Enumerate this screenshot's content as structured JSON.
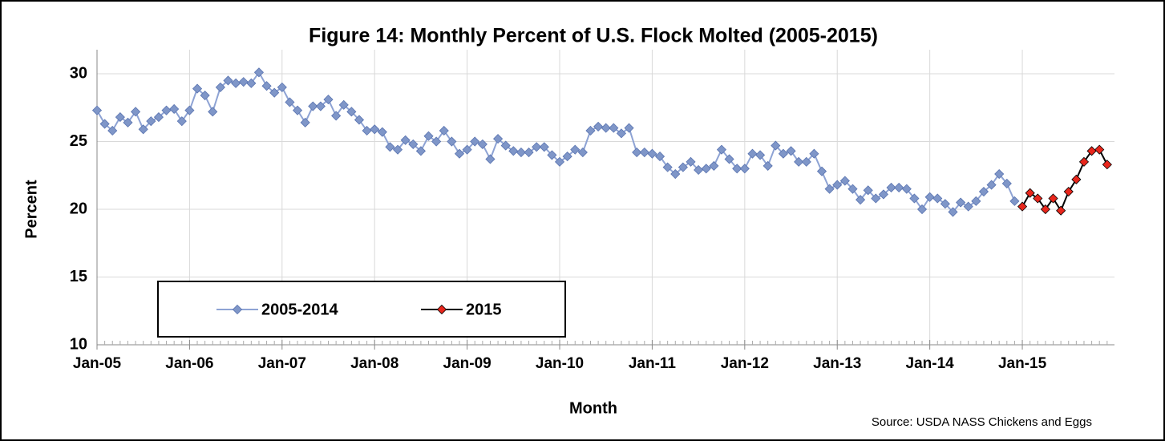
{
  "chart_data": {
    "type": "line",
    "title": "Figure 14: Monthly Percent of U.S. Flock Molted (2005-2015)",
    "x_label": "Month",
    "y_label": "Percent",
    "source": "Source: USDA NASS Chickens and Eggs",
    "categories": [
      "Jan-05",
      null,
      null,
      null,
      null,
      null,
      null,
      null,
      null,
      null,
      null,
      null,
      "Jan-06",
      null,
      null,
      null,
      null,
      null,
      null,
      null,
      null,
      null,
      null,
      null,
      "Jan-07",
      null,
      null,
      null,
      null,
      null,
      null,
      null,
      null,
      null,
      null,
      null,
      "Jan-08",
      null,
      null,
      null,
      null,
      null,
      null,
      null,
      null,
      null,
      null,
      null,
      "Jan-09",
      null,
      null,
      null,
      null,
      null,
      null,
      null,
      null,
      null,
      null,
      null,
      "Jan-10",
      null,
      null,
      null,
      null,
      null,
      null,
      null,
      null,
      null,
      null,
      null,
      "Jan-11",
      null,
      null,
      null,
      null,
      null,
      null,
      null,
      null,
      null,
      null,
      null,
      "Jan-12",
      null,
      null,
      null,
      null,
      null,
      null,
      null,
      null,
      null,
      null,
      null,
      "Jan-13",
      null,
      null,
      null,
      null,
      null,
      null,
      null,
      null,
      null,
      null,
      null,
      "Jan-14",
      null,
      null,
      null,
      null,
      null,
      null,
      null,
      null,
      null,
      null,
      null,
      "Jan-15",
      null,
      null,
      null,
      null,
      null,
      null,
      null,
      null,
      null,
      null,
      null
    ],
    "series": [
      {
        "name": "2005-2014",
        "color": "#7f96c8",
        "values": [
          27.3,
          26.3,
          25.8,
          26.8,
          26.4,
          27.2,
          25.9,
          26.5,
          26.8,
          27.3,
          27.4,
          26.5,
          27.3,
          28.9,
          28.4,
          27.2,
          29.0,
          29.5,
          29.3,
          29.4,
          29.3,
          30.1,
          29.1,
          28.6,
          29.0,
          27.9,
          27.3,
          26.4,
          27.6,
          27.6,
          28.1,
          26.9,
          27.7,
          27.2,
          26.6,
          25.8,
          25.9,
          25.7,
          24.6,
          24.4,
          25.1,
          24.8,
          24.3,
          25.4,
          25.0,
          25.8,
          25.0,
          24.1,
          24.4,
          25.0,
          24.8,
          23.7,
          25.2,
          24.7,
          24.3,
          24.2,
          24.2,
          24.6,
          24.6,
          24.0,
          23.5,
          23.9,
          24.4,
          24.2,
          25.8,
          26.1,
          26.0,
          26.0,
          25.6,
          26.0,
          24.2,
          24.2,
          24.1,
          23.9,
          23.1,
          22.6,
          23.1,
          23.5,
          22.9,
          23.0,
          23.2,
          24.4,
          23.7,
          23.0,
          23.0,
          24.1,
          24.0,
          23.2,
          24.7,
          24.1,
          24.3,
          23.5,
          23.5,
          24.1,
          22.8,
          21.5,
          21.8,
          22.1,
          21.5,
          20.7,
          21.4,
          20.8,
          21.1,
          21.6,
          21.6,
          21.5,
          20.8,
          20.0,
          20.9,
          20.8,
          20.4,
          19.8,
          20.5,
          20.2,
          20.6,
          21.3,
          21.8,
          22.6,
          21.9,
          20.6,
          null,
          null,
          null,
          null,
          null,
          null,
          null,
          null,
          null,
          null,
          null,
          null
        ]
      },
      {
        "name": "2015",
        "color": "#e8261c",
        "values": [
          null,
          null,
          null,
          null,
          null,
          null,
          null,
          null,
          null,
          null,
          null,
          null,
          null,
          null,
          null,
          null,
          null,
          null,
          null,
          null,
          null,
          null,
          null,
          null,
          null,
          null,
          null,
          null,
          null,
          null,
          null,
          null,
          null,
          null,
          null,
          null,
          null,
          null,
          null,
          null,
          null,
          null,
          null,
          null,
          null,
          null,
          null,
          null,
          null,
          null,
          null,
          null,
          null,
          null,
          null,
          null,
          null,
          null,
          null,
          null,
          null,
          null,
          null,
          null,
          null,
          null,
          null,
          null,
          null,
          null,
          null,
          null,
          null,
          null,
          null,
          null,
          null,
          null,
          null,
          null,
          null,
          null,
          null,
          null,
          null,
          null,
          null,
          null,
          null,
          null,
          null,
          null,
          null,
          null,
          null,
          null,
          null,
          null,
          null,
          null,
          null,
          null,
          null,
          null,
          null,
          null,
          null,
          null,
          null,
          null,
          null,
          null,
          null,
          null,
          null,
          null,
          null,
          null,
          null,
          null,
          20.2,
          21.2,
          20.8,
          20.0,
          20.8,
          19.9,
          21.3,
          22.2,
          23.5,
          24.3,
          24.4,
          23.3
        ]
      }
    ],
    "ylim": [
      10,
      30
    ],
    "yticks": [
      10,
      15,
      20,
      25,
      30
    ],
    "grid": true
  }
}
